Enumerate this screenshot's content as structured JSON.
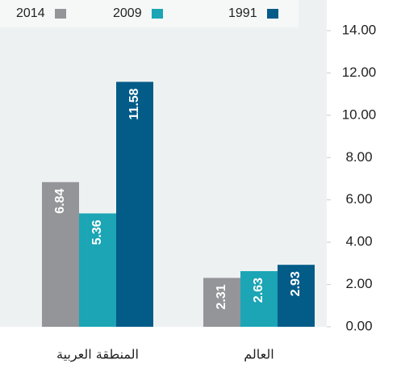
{
  "chart_data": {
    "type": "bar",
    "categories": [
      "المنطقة العربية",
      "العالم"
    ],
    "series": [
      {
        "name": "2014",
        "color": "#939598",
        "values": [
          6.84,
          2.31
        ]
      },
      {
        "name": "2009",
        "color": "#1ba5b5",
        "values": [
          5.36,
          2.63
        ]
      },
      {
        "name": "1991",
        "color": "#035b88",
        "values": [
          11.58,
          2.93
        ]
      }
    ],
    "ylim": [
      0,
      14
    ],
    "yticks": [
      {
        "value": 0,
        "label": "0.00"
      },
      {
        "value": 2,
        "label": "2.00"
      },
      {
        "value": 4,
        "label": "4.00"
      },
      {
        "value": 6,
        "label": "6.00"
      },
      {
        "value": 8,
        "label": "8.00"
      },
      {
        "value": 10,
        "label": "10.00"
      },
      {
        "value": 12,
        "label": "12.00"
      },
      {
        "value": 14,
        "label": "14.00"
      }
    ],
    "legend": "top"
  }
}
